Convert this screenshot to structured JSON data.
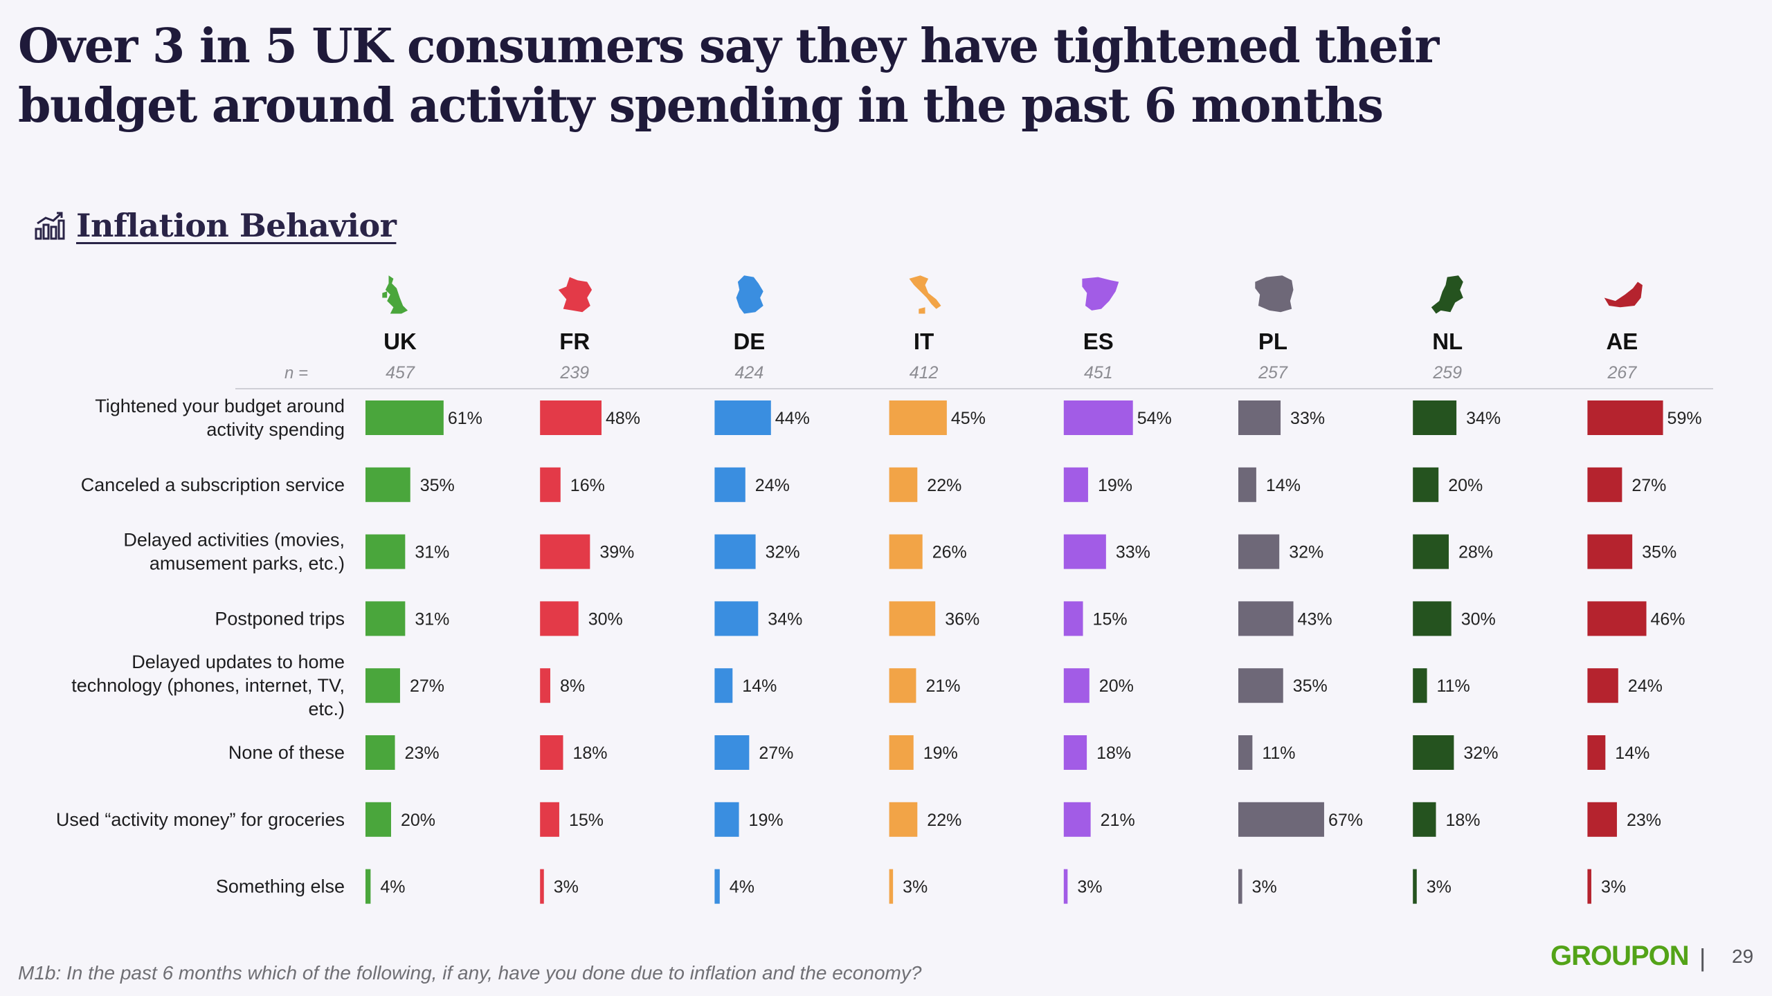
{
  "title": "Over 3 in 5 UK consumers say they have tightened their budget around activity spending in the past 6 months",
  "section": {
    "title": "Inflation Behavior",
    "icon": "bar-chart-trend-icon"
  },
  "chart_data": {
    "type": "bar",
    "orientation": "horizontal",
    "unit": "%",
    "n_label": "n =",
    "categories": [
      "Tightened your budget around activity spending",
      "Canceled a subscription service",
      "Delayed activities (movies, amusement parks, etc.)",
      "Postponed trips",
      "Delayed updates to home technology (phones, internet, TV, etc.)",
      "None of these",
      "Used “activity money” for groceries",
      "Something else"
    ],
    "category_lines": [
      [
        "Tightened your budget around",
        "activity spending"
      ],
      [
        "Canceled a subscription service"
      ],
      [
        "Delayed activities (movies,",
        "amusement parks, etc.)"
      ],
      [
        "Postponed trips"
      ],
      [
        "Delayed updates to home",
        "technology (phones, internet, TV,",
        "etc.)"
      ],
      [
        "None of these"
      ],
      [
        "Used “activity money” for groceries"
      ],
      [
        "Something else"
      ]
    ],
    "series": [
      {
        "name": "UK",
        "n": 457,
        "color": "#4aa63c",
        "icon": "uk-map-icon",
        "values": [
          61,
          35,
          31,
          31,
          27,
          23,
          20,
          4
        ]
      },
      {
        "name": "FR",
        "n": 239,
        "color": "#e33a48",
        "icon": "france-map-icon",
        "values": [
          48,
          16,
          39,
          30,
          8,
          18,
          15,
          3
        ]
      },
      {
        "name": "DE",
        "n": 424,
        "color": "#3a8ee0",
        "icon": "germany-map-icon",
        "values": [
          44,
          24,
          32,
          34,
          14,
          27,
          19,
          4
        ]
      },
      {
        "name": "IT",
        "n": 412,
        "color": "#f2a447",
        "icon": "italy-map-icon",
        "values": [
          45,
          22,
          26,
          36,
          21,
          19,
          22,
          3
        ]
      },
      {
        "name": "ES",
        "n": 451,
        "color": "#a25ce6",
        "icon": "spain-map-icon",
        "values": [
          54,
          19,
          33,
          15,
          20,
          18,
          21,
          3
        ]
      },
      {
        "name": "PL",
        "n": 257,
        "color": "#6e6878",
        "icon": "poland-map-icon",
        "values": [
          33,
          14,
          32,
          43,
          35,
          11,
          67,
          3
        ]
      },
      {
        "name": "NL",
        "n": 259,
        "color": "#25531f",
        "icon": "netherlands-map-icon",
        "values": [
          34,
          20,
          28,
          30,
          11,
          32,
          18,
          3
        ]
      },
      {
        "name": "AE",
        "n": 267,
        "color": "#b5232e",
        "icon": "uae-map-icon",
        "values": [
          59,
          27,
          35,
          46,
          24,
          14,
          23,
          3
        ]
      }
    ]
  },
  "footnote": "M1b: In the past 6 months which of the following, if any, have you done due to inflation and the economy?",
  "brand": "GROUPON",
  "separator": "|",
  "page_number": "29"
}
